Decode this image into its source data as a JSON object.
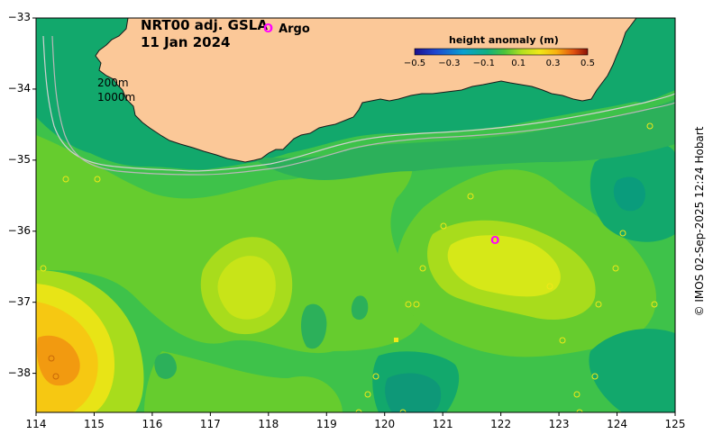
{
  "title": {
    "line1": "NRT00 adj. GSLA",
    "line2": "11 Jan 2024"
  },
  "legend": {
    "argo_symbol": "O",
    "argo_label": "Argo"
  },
  "colorbar": {
    "title": "height anomaly (m)",
    "ticks": [
      "−0.5",
      "−0.3",
      "−0.1",
      "0.1",
      "0.3",
      "0.5"
    ],
    "min": -0.5,
    "max": 0.5
  },
  "contours": {
    "label_200": "200m",
    "label_1000": "1000m"
  },
  "axes": {
    "lon_ticks": [
      "114",
      "115",
      "116",
      "117",
      "118",
      "119",
      "120",
      "121",
      "122",
      "123",
      "124",
      "125"
    ],
    "lat_ticks": [
      "−33",
      "−34",
      "−35",
      "−36",
      "−37",
      "−38"
    ],
    "lon_range": [
      114,
      125
    ],
    "lat_range": [
      -38.55,
      -33
    ]
  },
  "argo_float": {
    "lon": 121.9,
    "lat": -36.13
  },
  "credit": "© IMOS 02-Sep-2025 12:24 Hobart",
  "colors": {
    "land": "#fbc898",
    "shelf": "#12a86c",
    "argo": "#ff00ff"
  }
}
